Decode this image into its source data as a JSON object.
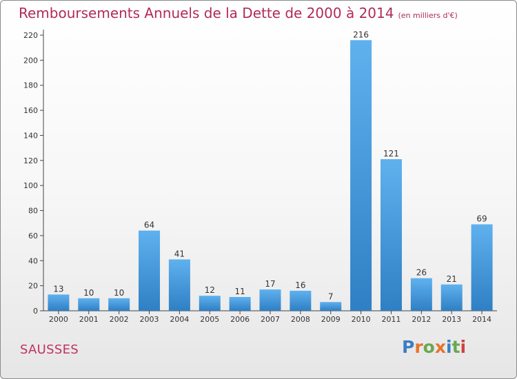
{
  "title": "Remboursements Annuels de la Dette de 2000 à 2014",
  "subtitle": "(en milliers d'€)",
  "place": "SAUSSES",
  "logo": {
    "letters": [
      "P",
      "r",
      "o",
      "x",
      "i",
      "t",
      "i"
    ],
    "colors": [
      "#3a7fc4",
      "#e8732a",
      "#6aa84f",
      "#e8732a",
      "#3a7fc4",
      "#6aa84f",
      "#d04040"
    ]
  },
  "colors": {
    "bar": "#3d8fd6",
    "bar_highlight": "#5fb1ee",
    "axis": "#555555",
    "title": "#b02a5a"
  },
  "chart_data": {
    "type": "bar",
    "categories": [
      "2000",
      "2001",
      "2002",
      "2003",
      "2004",
      "2005",
      "2006",
      "2007",
      "2008",
      "2009",
      "2010",
      "2011",
      "2012",
      "2013",
      "2014"
    ],
    "values": [
      13,
      10,
      10,
      64,
      41,
      12,
      11,
      17,
      16,
      7,
      216,
      121,
      26,
      21,
      69
    ],
    "ylim": [
      0,
      220
    ],
    "yticks": [
      0,
      20,
      40,
      60,
      80,
      100,
      120,
      140,
      160,
      180,
      200,
      220
    ],
    "grid": false,
    "xlabel": "",
    "ylabel": ""
  }
}
